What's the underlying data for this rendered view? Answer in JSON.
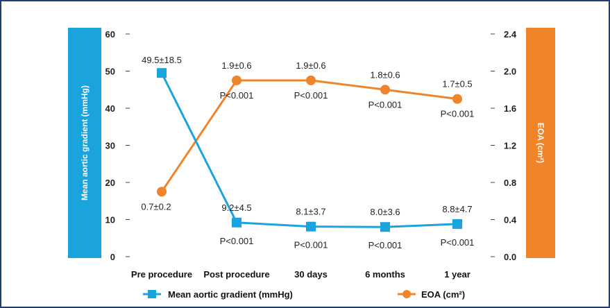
{
  "chart_data": {
    "type": "line",
    "categories": [
      "Pre procedure",
      "Post procedure",
      "30 days",
      "6 months",
      "1 year"
    ],
    "y_left": {
      "label": "Mean aortic gradient (mmHg)",
      "lim": [
        0,
        60
      ],
      "ticks": [
        "0",
        "10",
        "20",
        "30",
        "40",
        "50",
        "60"
      ]
    },
    "y_right": {
      "label": "EOA (cm²)",
      "lim": [
        0,
        2.4
      ],
      "ticks": [
        "0.0",
        "0.4",
        "0.8",
        "1.2",
        "1.6",
        "2.0",
        "2.4"
      ]
    },
    "series": [
      {
        "name": "Mean aortic gradient (mmHg)",
        "axis": "left",
        "color": "#1aa3dd",
        "marker": "square",
        "values": [
          49.5,
          9.2,
          8.1,
          8.0,
          8.8
        ],
        "value_labels": [
          "49.5±18.5",
          "9.2±4.5",
          "8.1±3.7",
          "8.0±3.6",
          "8.8±4.7"
        ],
        "p_labels": [
          "",
          "P<0.001",
          "P<0.001",
          "P<0.001",
          "P<0.001"
        ]
      },
      {
        "name": "EOA (cm²)",
        "axis": "right",
        "color": "#f0842a",
        "marker": "circle",
        "values": [
          0.7,
          1.9,
          1.9,
          1.8,
          1.7
        ],
        "value_labels": [
          "0.7±0.2",
          "1.9±0.6",
          "1.9±0.6",
          "1.8±0.6",
          "1.7±0.5"
        ],
        "p_labels": [
          "",
          "P<0.001",
          "P<0.001",
          "P<0.001",
          "P<0.001"
        ]
      }
    ],
    "legend": {
      "placement": "bottom",
      "items": [
        {
          "label": "Mean aortic gradient (mmHg)",
          "color": "#1aa3dd",
          "marker": "square"
        },
        {
          "label": "EOA (cm²)",
          "color": "#f0842a",
          "marker": "circle"
        }
      ]
    },
    "grid": false
  }
}
